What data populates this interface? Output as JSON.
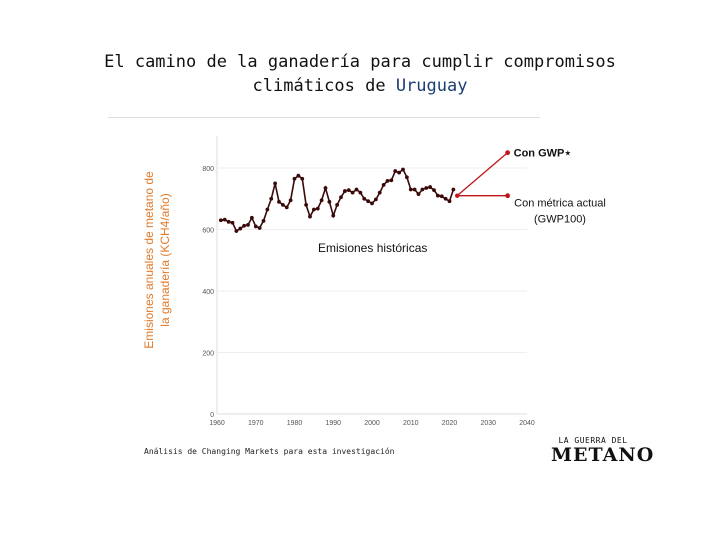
{
  "title": {
    "line1": "El camino de la ganadería para cumplir compromisos",
    "line2_prefix": "climáticos de",
    "line2_accent": "Uruguay"
  },
  "footer": {
    "source": "Análisis de Changing Markets para esta investigación",
    "logo_top": "LA GUERRA DEL",
    "logo_bottom": "METANO"
  },
  "colors": {
    "series": "#3a0a0a",
    "projection": "#c0151b",
    "ylabel": "#e07b2c",
    "accent": "#1c3f73"
  },
  "chart_data": {
    "type": "line",
    "ylabel_line1": "Emisiones anuales de metano de",
    "ylabel_line2": "la ganadería (KCH4/año)",
    "ylim": [
      0,
      850
    ],
    "yticks": [
      0,
      200,
      400,
      600,
      800
    ],
    "xlim": [
      1960,
      2040
    ],
    "xticks": [
      1960,
      1970,
      1980,
      1990,
      2000,
      2010,
      2020,
      2030,
      2040
    ],
    "series": [
      {
        "x": [
          1961,
          1962,
          1963,
          1964,
          1965,
          1966,
          1967,
          1968,
          1969,
          1970,
          1971,
          1972,
          1973,
          1974,
          1975,
          1976,
          1977,
          1978,
          1979,
          1980,
          1981,
          1982,
          1983,
          1984,
          1985,
          1986,
          1987,
          1988,
          1989,
          1990,
          1991,
          1992,
          1993,
          1994,
          1995,
          1996,
          1997,
          1998,
          1999,
          2000,
          2001,
          2002,
          2003,
          2004,
          2005,
          2006,
          2007,
          2008,
          2009,
          2010,
          2011,
          2012,
          2013,
          2014,
          2015,
          2016,
          2017,
          2018,
          2019,
          2020,
          2021
        ],
        "y": [
          630,
          632,
          625,
          622,
          595,
          603,
          612,
          615,
          638,
          610,
          605,
          628,
          665,
          700,
          750,
          690,
          680,
          672,
          695,
          765,
          775,
          765,
          680,
          642,
          665,
          668,
          695,
          735,
          690,
          645,
          680,
          705,
          725,
          728,
          720,
          730,
          720,
          700,
          692,
          685,
          698,
          720,
          745,
          758,
          760,
          790,
          785,
          795,
          770,
          730,
          730,
          715,
          730,
          735,
          738,
          728,
          710,
          708,
          700,
          692,
          730
        ]
      }
    ],
    "projections": [
      {
        "label": "Con GWP⋆",
        "x": [
          2022,
          2035
        ],
        "y": [
          710,
          850
        ]
      },
      {
        "label_line1": "Con métrica actual",
        "label_line2": "(GWP100)",
        "x": [
          2022,
          2035
        ],
        "y": [
          710,
          710
        ]
      }
    ],
    "annotation": "Emisiones históricas"
  }
}
